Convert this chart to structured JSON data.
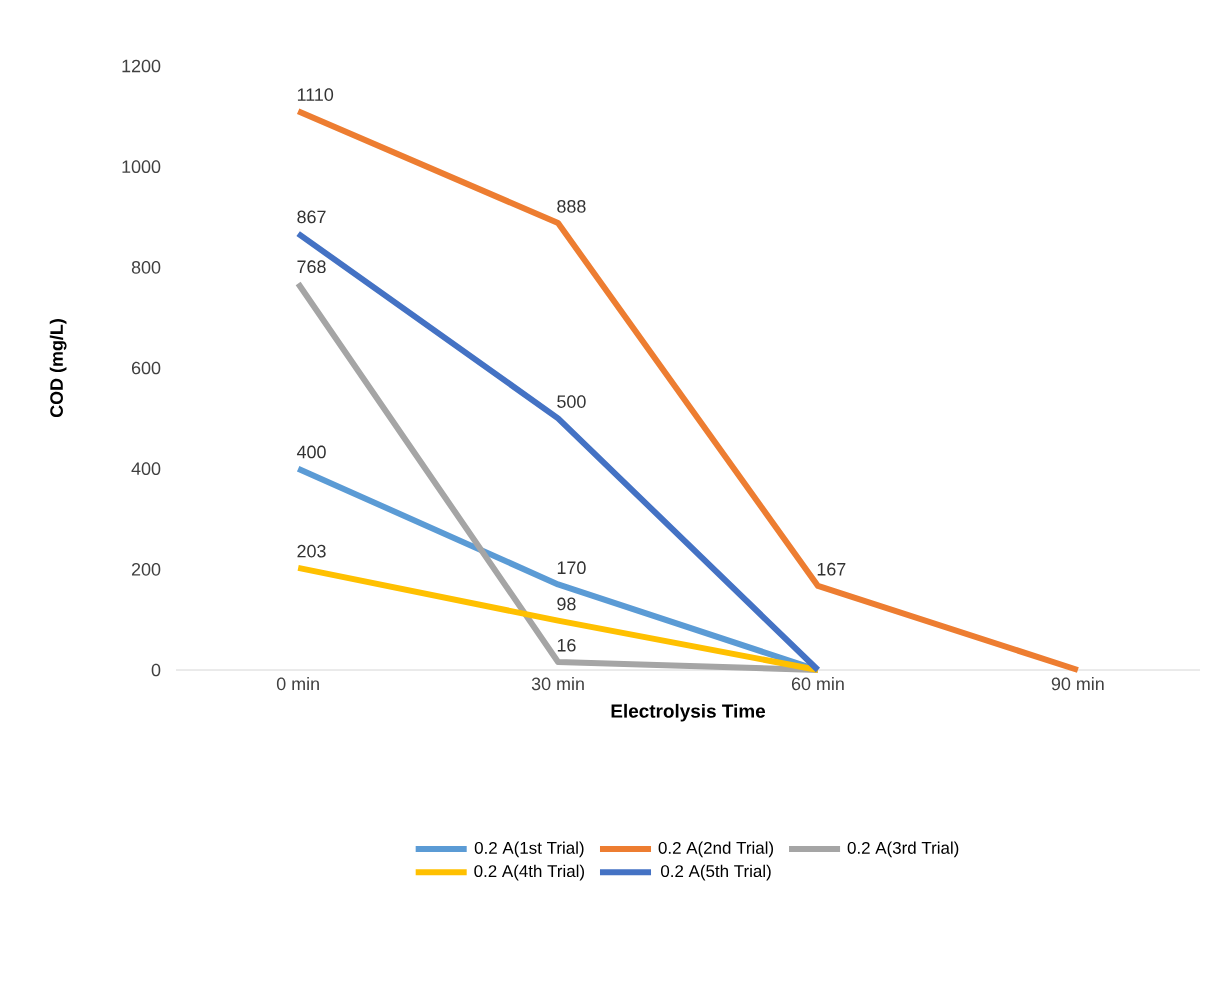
{
  "chart_data": {
    "type": "line",
    "xlabel": "Electrolysis Time",
    "ylabel": "COD (mg/L)",
    "categories": [
      "0 min",
      "30 min",
      "60 min",
      "90 min"
    ],
    "series": [
      {
        "name": "0.2 A(1st Trial)",
        "color": "#5b9bd5",
        "values": [
          400,
          170,
          0,
          null
        ],
        "value_labels": [
          "400",
          "170",
          null,
          null
        ]
      },
      {
        "name": "0.2 A(2nd Trial)",
        "color": "#ed7d31",
        "values": [
          1110,
          888,
          167,
          0
        ],
        "value_labels": [
          "1110",
          "888",
          "167",
          null
        ]
      },
      {
        "name": "0.2 A(3rd Trial)",
        "color": "#a5a5a5",
        "values": [
          768,
          16,
          0,
          null
        ],
        "value_labels": [
          "768",
          "16",
          null,
          null
        ]
      },
      {
        "name": "0.2 A(4th Trial)",
        "color": "#ffc000",
        "values": [
          203,
          98,
          0,
          null
        ],
        "value_labels": [
          "203",
          "98",
          null,
          null
        ]
      },
      {
        "name": "0.2 A(5th Trial)",
        "color": "#4472c4",
        "values": [
          867,
          500,
          0,
          null
        ],
        "value_labels": [
          "867",
          "500",
          null,
          null
        ]
      }
    ],
    "ylim": [
      0,
      1200
    ],
    "yticks": [
      0,
      200,
      400,
      600,
      800,
      1000,
      1200
    ],
    "legend": "bottom"
  }
}
